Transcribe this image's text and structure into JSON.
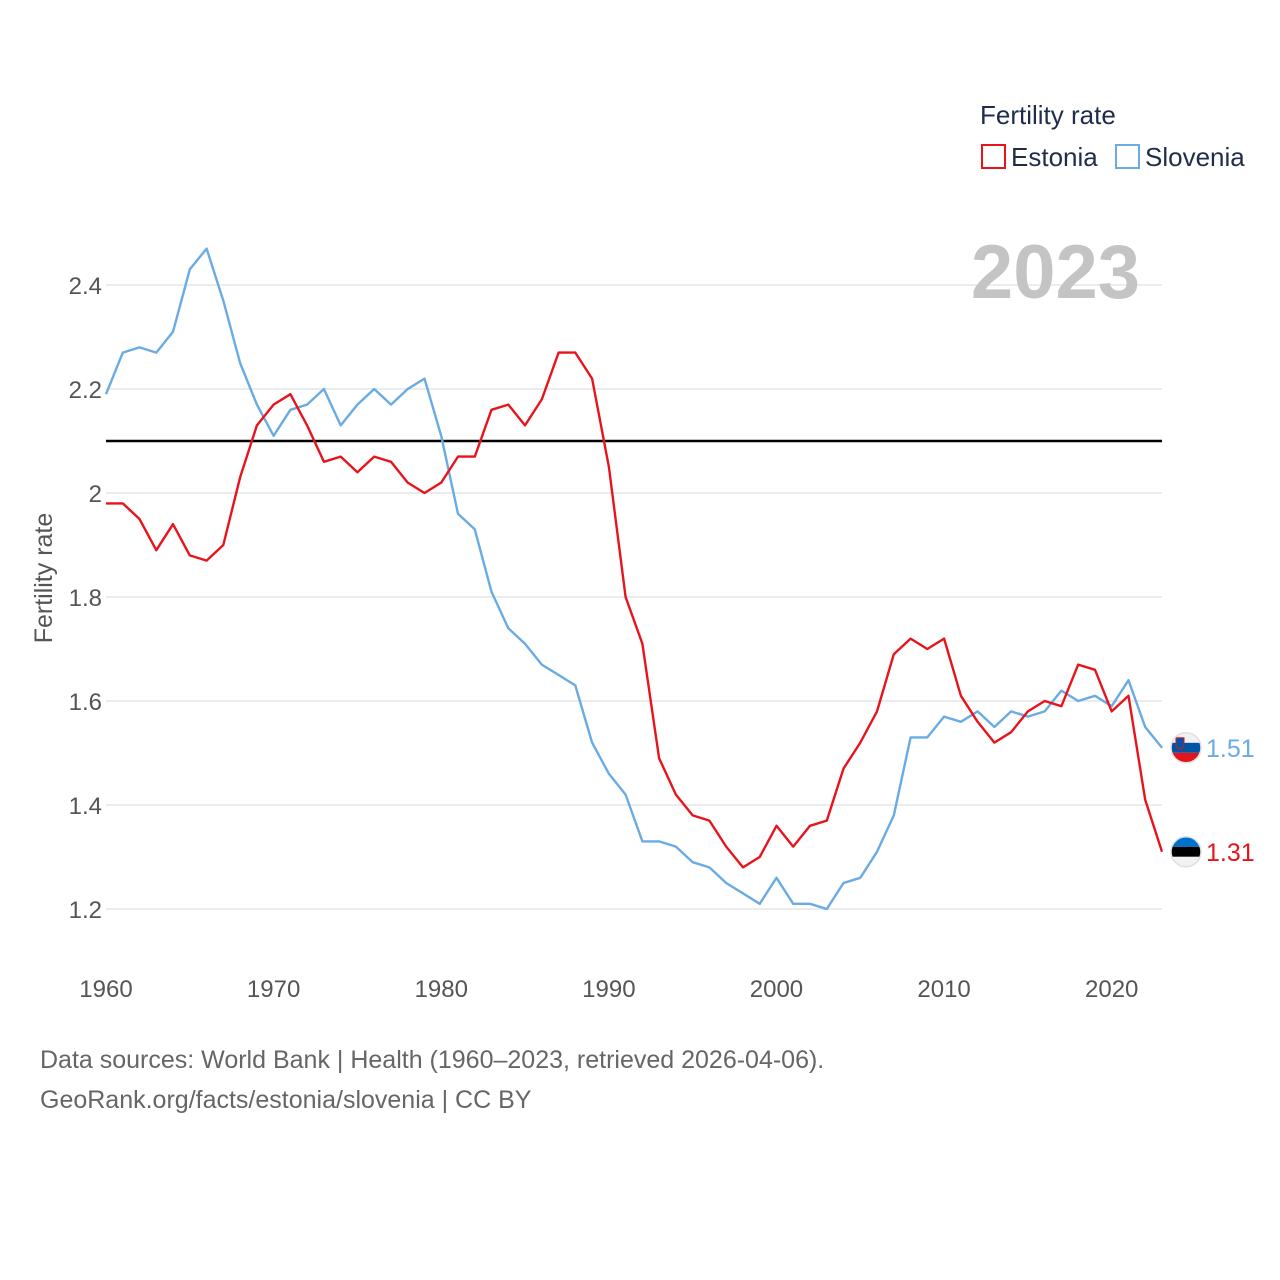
{
  "chart_data": {
    "type": "line",
    "year_label": "2023",
    "ylabel": "Fertility rate",
    "legend_title": "Fertility rate",
    "xlim": [
      1960,
      2023
    ],
    "ylim": [
      1.1,
      2.55
    ],
    "y_ticks": [
      1.2,
      1.4,
      1.6,
      1.8,
      2,
      2.2,
      2.4
    ],
    "y_tick_labels": [
      "1.2",
      "1.4",
      "1.6",
      "1.8",
      "2",
      "2.2",
      "2.4"
    ],
    "x_ticks": [
      1960,
      1970,
      1980,
      1990,
      2000,
      2010,
      2020
    ],
    "x_tick_labels": [
      "1960",
      "1970",
      "1980",
      "1990",
      "2000",
      "2010",
      "2020"
    ],
    "reference_line": 2.1,
    "series": [
      {
        "name": "Estonia",
        "color": "#e8141c",
        "end_value_label": "1.31",
        "flag": "estonia-flag",
        "x": [
          1960,
          1961,
          1962,
          1963,
          1964,
          1965,
          1966,
          1967,
          1968,
          1969,
          1970,
          1971,
          1972,
          1973,
          1974,
          1975,
          1976,
          1977,
          1978,
          1979,
          1980,
          1981,
          1982,
          1983,
          1984,
          1985,
          1986,
          1987,
          1988,
          1989,
          1990,
          1991,
          1992,
          1993,
          1994,
          1995,
          1996,
          1997,
          1998,
          1999,
          2000,
          2001,
          2002,
          2003,
          2004,
          2005,
          2006,
          2007,
          2008,
          2009,
          2010,
          2011,
          2012,
          2013,
          2014,
          2015,
          2016,
          2017,
          2018,
          2019,
          2020,
          2021,
          2022,
          2023
        ],
        "values": [
          1.98,
          1.98,
          1.95,
          1.89,
          1.94,
          1.88,
          1.87,
          1.9,
          2.03,
          2.13,
          2.17,
          2.19,
          2.13,
          2.06,
          2.07,
          2.04,
          2.07,
          2.06,
          2.02,
          2.0,
          2.02,
          2.07,
          2.07,
          2.16,
          2.17,
          2.13,
          2.18,
          2.27,
          2.27,
          2.22,
          2.05,
          1.8,
          1.71,
          1.49,
          1.42,
          1.38,
          1.37,
          1.32,
          1.28,
          1.3,
          1.36,
          1.32,
          1.36,
          1.37,
          1.47,
          1.52,
          1.58,
          1.69,
          1.72,
          1.7,
          1.72,
          1.61,
          1.56,
          1.52,
          1.54,
          1.58,
          1.6,
          1.59,
          1.67,
          1.66,
          1.58,
          1.61,
          1.41,
          1.31
        ]
      },
      {
        "name": "Slovenia",
        "color": "#6aabe4",
        "end_value_label": "1.51",
        "flag": "slovenia-flag",
        "x": [
          1960,
          1961,
          1962,
          1963,
          1964,
          1965,
          1966,
          1967,
          1968,
          1969,
          1970,
          1971,
          1972,
          1973,
          1974,
          1975,
          1976,
          1977,
          1978,
          1979,
          1980,
          1981,
          1982,
          1983,
          1984,
          1985,
          1986,
          1987,
          1988,
          1989,
          1990,
          1991,
          1992,
          1993,
          1994,
          1995,
          1996,
          1997,
          1998,
          1999,
          2000,
          2001,
          2002,
          2003,
          2004,
          2005,
          2006,
          2007,
          2008,
          2009,
          2010,
          2011,
          2012,
          2013,
          2014,
          2015,
          2016,
          2017,
          2018,
          2019,
          2020,
          2021,
          2022,
          2023
        ],
        "values": [
          2.19,
          2.27,
          2.28,
          2.27,
          2.31,
          2.43,
          2.47,
          2.37,
          2.25,
          2.17,
          2.11,
          2.16,
          2.17,
          2.2,
          2.13,
          2.17,
          2.2,
          2.17,
          2.2,
          2.22,
          2.11,
          1.96,
          1.93,
          1.81,
          1.74,
          1.71,
          1.67,
          1.65,
          1.63,
          1.52,
          1.46,
          1.42,
          1.33,
          1.33,
          1.32,
          1.29,
          1.28,
          1.25,
          1.23,
          1.21,
          1.26,
          1.21,
          1.21,
          1.2,
          1.25,
          1.26,
          1.31,
          1.38,
          1.53,
          1.53,
          1.57,
          1.56,
          1.58,
          1.55,
          1.58,
          1.57,
          1.58,
          1.62,
          1.6,
          1.61,
          1.59,
          1.64,
          1.55,
          1.51
        ]
      }
    ]
  },
  "footer": {
    "line1": "Data sources: World Bank | Health (1960–2023, retrieved 2026-04-06).",
    "line2": "GeoRank.org/facts/estonia/slovenia | CC BY"
  }
}
